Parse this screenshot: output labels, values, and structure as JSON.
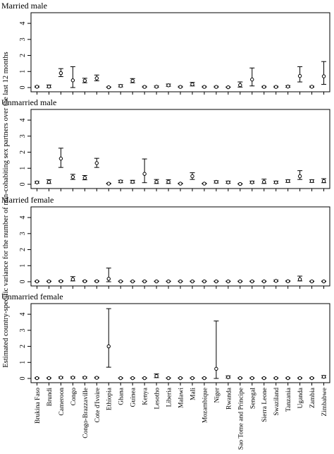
{
  "figure": {
    "ylabel": "Estimated country-specific variance for the number of non-cohabiting sex partners over the last 12 months"
  },
  "chart_data": {
    "type": "scatter",
    "error_bars": true,
    "ylim": [
      0,
      4.4
    ],
    "yticks": [
      0,
      1,
      2,
      3,
      4
    ],
    "categories": [
      "Brukina Faso",
      "Brundi",
      "Cameroon",
      "Congo",
      "Congo-Brazzaville",
      "Cote d'Ivoire",
      "Ethiopia",
      "Ghana",
      "Guinea",
      "Kenya",
      "Lesotho",
      "Liberia",
      "Malawi",
      "Mali",
      "Mozambique",
      "Niger",
      "Rwanda",
      "Sao Tome and Principe",
      "Senegal",
      "Sierra Leone",
      "Swaziland",
      "Tanzania",
      "Uganda",
      "Zambia",
      "Zimbabwe"
    ],
    "panels": [
      {
        "title": "Married male",
        "values": [
          0.05,
          0.06,
          0.9,
          0.45,
          0.43,
          0.58,
          0.02,
          0.1,
          0.42,
          0.04,
          0.05,
          0.14,
          0.04,
          0.2,
          0.04,
          0.04,
          0.02,
          0.15,
          0.5,
          0.04,
          0.04,
          0.06,
          0.72,
          0.05,
          0.7
        ],
        "lower": [
          0.02,
          0.0,
          0.68,
          0.0,
          0.3,
          0.42,
          0.01,
          0.04,
          0.3,
          0.01,
          0.01,
          0.08,
          0.01,
          0.1,
          0.01,
          0.01,
          0.01,
          0.03,
          0.1,
          0.01,
          0.01,
          0.02,
          0.35,
          0.02,
          0.2
        ],
        "upper": [
          0.09,
          0.16,
          1.18,
          1.3,
          0.58,
          0.78,
          0.04,
          0.18,
          0.56,
          0.08,
          0.1,
          0.22,
          0.08,
          0.32,
          0.08,
          0.08,
          0.04,
          0.35,
          1.22,
          0.08,
          0.08,
          0.12,
          1.3,
          0.09,
          1.62
        ]
      },
      {
        "title": "Unmarried male",
        "values": [
          0.12,
          0.15,
          1.6,
          0.45,
          0.4,
          1.32,
          0.04,
          0.18,
          0.15,
          0.65,
          0.15,
          0.15,
          0.04,
          0.5,
          0.04,
          0.15,
          0.12,
          0.02,
          0.12,
          0.15,
          0.12,
          0.2,
          0.5,
          0.2,
          0.2
        ],
        "lower": [
          0.07,
          0.05,
          1.05,
          0.3,
          0.28,
          1.05,
          0.02,
          0.1,
          0.08,
          0.1,
          0.05,
          0.05,
          0.02,
          0.3,
          0.02,
          0.08,
          0.06,
          0.01,
          0.07,
          0.05,
          0.06,
          0.12,
          0.3,
          0.12,
          0.1
        ],
        "upper": [
          0.18,
          0.28,
          2.25,
          0.62,
          0.55,
          1.62,
          0.07,
          0.25,
          0.25,
          1.58,
          0.3,
          0.28,
          0.07,
          0.72,
          0.07,
          0.22,
          0.2,
          0.04,
          0.2,
          0.32,
          0.2,
          0.28,
          0.85,
          0.28,
          0.35
        ]
      },
      {
        "title": "Married female",
        "values": [
          0.02,
          0.02,
          0.03,
          0.15,
          0.03,
          0.03,
          0.18,
          0.02,
          0.02,
          0.02,
          0.02,
          0.02,
          0.02,
          0.02,
          0.02,
          0.02,
          0.02,
          0.02,
          0.02,
          0.02,
          0.05,
          0.03,
          0.15,
          0.02,
          0.02
        ],
        "lower": [
          0.01,
          0.01,
          0.01,
          0.05,
          0.01,
          0.01,
          0.0,
          0.01,
          0.01,
          0.01,
          0.01,
          0.01,
          0.01,
          0.01,
          0.01,
          0.01,
          0.01,
          0.01,
          0.01,
          0.01,
          0.02,
          0.01,
          0.05,
          0.01,
          0.01
        ],
        "upper": [
          0.04,
          0.04,
          0.06,
          0.32,
          0.06,
          0.06,
          0.85,
          0.04,
          0.04,
          0.04,
          0.04,
          0.04,
          0.04,
          0.04,
          0.04,
          0.04,
          0.04,
          0.04,
          0.04,
          0.04,
          0.1,
          0.06,
          0.35,
          0.04,
          0.04
        ]
      },
      {
        "title": "Unmarried female",
        "values": [
          0.02,
          0.02,
          0.05,
          0.05,
          0.05,
          0.04,
          2.0,
          0.02,
          0.02,
          0.02,
          0.15,
          0.02,
          0.02,
          0.02,
          0.02,
          0.6,
          0.08,
          0.02,
          0.02,
          0.02,
          0.02,
          0.02,
          0.02,
          0.02,
          0.1
        ],
        "lower": [
          0.01,
          0.01,
          0.02,
          0.02,
          0.02,
          0.02,
          0.7,
          0.01,
          0.01,
          0.01,
          0.05,
          0.01,
          0.01,
          0.01,
          0.01,
          0.0,
          0.03,
          0.01,
          0.01,
          0.01,
          0.01,
          0.01,
          0.01,
          0.01,
          0.04
        ],
        "upper": [
          0.04,
          0.04,
          0.1,
          0.1,
          0.1,
          0.08,
          4.35,
          0.04,
          0.04,
          0.04,
          0.28,
          0.04,
          0.04,
          0.04,
          0.04,
          3.58,
          0.16,
          0.04,
          0.04,
          0.04,
          0.04,
          0.04,
          0.04,
          0.04,
          0.18
        ]
      }
    ]
  }
}
